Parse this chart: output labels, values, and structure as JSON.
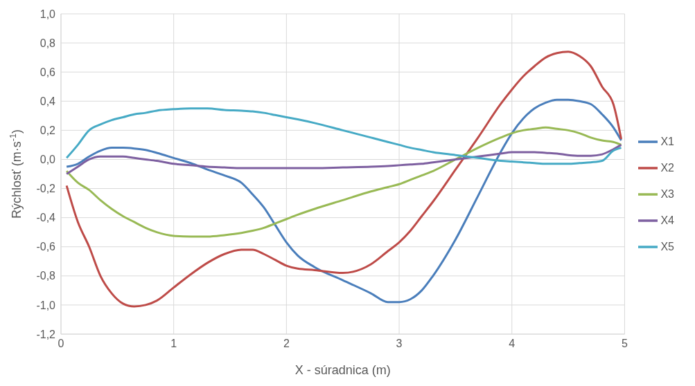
{
  "chart_data": {
    "type": "line",
    "xlabel": "X - súradnica (m)",
    "ylabel": "Rýchlosť (m·s$^{-1}$)",
    "x": [
      0.05,
      0.15,
      0.25,
      0.35,
      0.45,
      0.55,
      0.65,
      0.75,
      0.85,
      1.0,
      1.15,
      1.3,
      1.45,
      1.6,
      1.7,
      1.8,
      1.9,
      2.0,
      2.1,
      2.25,
      2.5,
      2.75,
      2.9,
      3.0,
      3.1,
      3.2,
      3.3,
      3.5,
      3.7,
      3.9,
      4.0,
      4.1,
      4.2,
      4.3,
      4.4,
      4.5,
      4.6,
      4.7,
      4.8,
      4.9,
      4.97
    ],
    "series": [
      {
        "name": "X1",
        "color": "#4a7ebb",
        "values": [
          -0.05,
          -0.03,
          0.02,
          0.06,
          0.08,
          0.08,
          0.075,
          0.065,
          0.045,
          0.01,
          -0.025,
          -0.07,
          -0.11,
          -0.16,
          -0.24,
          -0.33,
          -0.45,
          -0.57,
          -0.66,
          -0.74,
          -0.83,
          -0.92,
          -0.98,
          -0.98,
          -0.96,
          -0.9,
          -0.8,
          -0.55,
          -0.25,
          0.05,
          0.18,
          0.28,
          0.35,
          0.39,
          0.41,
          0.41,
          0.4,
          0.38,
          0.31,
          0.22,
          0.13
        ]
      },
      {
        "name": "X2",
        "color": "#be4b48",
        "values": [
          -0.18,
          -0.43,
          -0.6,
          -0.8,
          -0.92,
          -0.99,
          -1.01,
          -1.0,
          -0.97,
          -0.88,
          -0.79,
          -0.71,
          -0.65,
          -0.62,
          -0.62,
          -0.65,
          -0.69,
          -0.73,
          -0.75,
          -0.76,
          -0.78,
          -0.72,
          -0.63,
          -0.57,
          -0.49,
          -0.39,
          -0.29,
          -0.07,
          0.15,
          0.38,
          0.48,
          0.57,
          0.64,
          0.7,
          0.73,
          0.74,
          0.71,
          0.64,
          0.5,
          0.38,
          0.14
        ]
      },
      {
        "name": "X3",
        "color": "#98b954",
        "values": [
          -0.08,
          -0.16,
          -0.21,
          -0.28,
          -0.34,
          -0.39,
          -0.43,
          -0.47,
          -0.5,
          -0.525,
          -0.53,
          -0.53,
          -0.52,
          -0.505,
          -0.49,
          -0.47,
          -0.44,
          -0.41,
          -0.38,
          -0.34,
          -0.28,
          -0.22,
          -0.19,
          -0.17,
          -0.14,
          -0.11,
          -0.08,
          0.0,
          0.08,
          0.15,
          0.18,
          0.2,
          0.21,
          0.22,
          0.21,
          0.2,
          0.18,
          0.15,
          0.13,
          0.12,
          0.1
        ]
      },
      {
        "name": "X4",
        "color": "#7d5fa0",
        "values": [
          -0.1,
          -0.05,
          0.0,
          0.02,
          0.02,
          0.02,
          0.01,
          0.0,
          -0.01,
          -0.03,
          -0.04,
          -0.05,
          -0.055,
          -0.06,
          -0.06,
          -0.06,
          -0.06,
          -0.06,
          -0.06,
          -0.06,
          -0.055,
          -0.05,
          -0.045,
          -0.04,
          -0.035,
          -0.03,
          -0.02,
          0.0,
          0.02,
          0.04,
          0.05,
          0.05,
          0.05,
          0.045,
          0.04,
          0.03,
          0.025,
          0.025,
          0.035,
          0.07,
          0.1
        ]
      },
      {
        "name": "X5",
        "color": "#46aac5",
        "values": [
          0.01,
          0.1,
          0.2,
          0.24,
          0.27,
          0.29,
          0.31,
          0.32,
          0.335,
          0.345,
          0.35,
          0.35,
          0.34,
          0.335,
          0.33,
          0.32,
          0.305,
          0.29,
          0.275,
          0.25,
          0.2,
          0.15,
          0.12,
          0.1,
          0.08,
          0.065,
          0.05,
          0.03,
          0.01,
          -0.01,
          -0.015,
          -0.02,
          -0.025,
          -0.03,
          -0.03,
          -0.03,
          -0.025,
          -0.02,
          -0.01,
          0.06,
          0.08
        ]
      }
    ],
    "xlim": [
      0,
      5
    ],
    "xticks": [
      0,
      1,
      2,
      3,
      4,
      5
    ],
    "ylim": [
      -1.2,
      1.0
    ],
    "yticks": [
      {
        "value": -1.2,
        "label": "-1,2"
      },
      {
        "value": -1.0,
        "label": "-1,0"
      },
      {
        "value": -0.8,
        "label": "-0,8"
      },
      {
        "value": -0.6,
        "label": "-0,6"
      },
      {
        "value": -0.4,
        "label": "-0,4"
      },
      {
        "value": -0.2,
        "label": "-0,2"
      },
      {
        "value": 0,
        "label": "0,0"
      },
      {
        "value": 0.2,
        "label": "0,2"
      },
      {
        "value": 0.4,
        "label": "0,4"
      },
      {
        "value": 0.6,
        "label": "0,6"
      },
      {
        "value": 0.8,
        "label": "0,8"
      },
      {
        "value": 1.0,
        "label": "1,0"
      }
    ],
    "grid": true,
    "legend": "right",
    "marker": "none",
    "line_style": "solid"
  }
}
